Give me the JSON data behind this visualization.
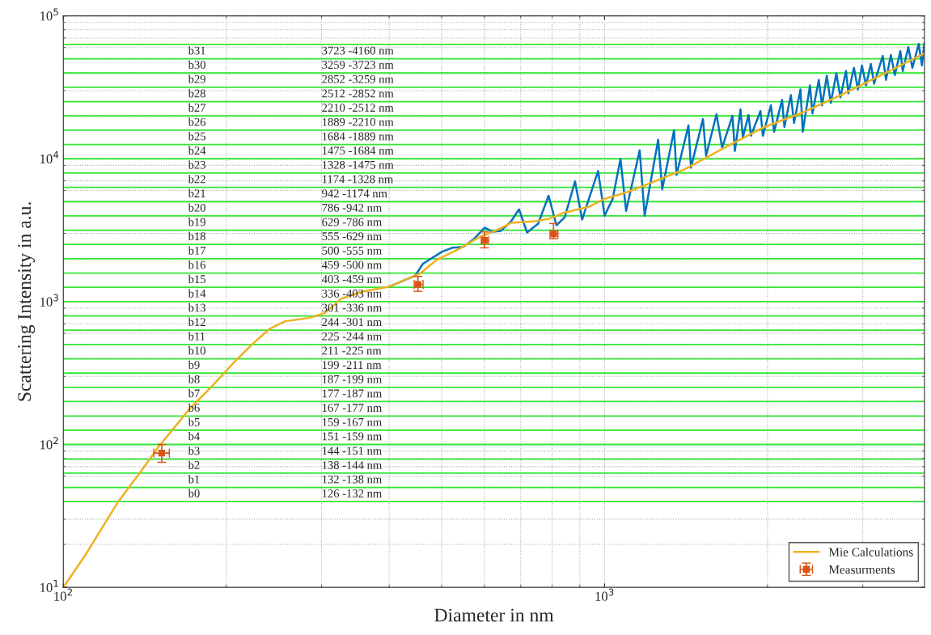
{
  "chart_data": {
    "type": "line",
    "xlabel": "Diameter in nm",
    "ylabel": "Scattering Intensity in a.u.",
    "log": "xy",
    "grid": true,
    "legend": "bottom right",
    "xlim": [
      100,
      3900
    ],
    "ylim": [
      10,
      100000
    ],
    "xticks": [
      {
        "value": 100,
        "label": "10$^{2}$"
      },
      {
        "value": 1000,
        "label": "10$^{3}$"
      }
    ],
    "yticks": [
      {
        "value": 10,
        "label": "10$^{1}$"
      },
      {
        "value": 100,
        "label": "10$^{2}$"
      },
      {
        "value": 1000,
        "label": "10$^{3}$"
      },
      {
        "value": 10000,
        "label": "10$^{4}$"
      },
      {
        "value": 100000,
        "label": "10$^{5}$"
      }
    ],
    "series": [
      {
        "color": "#0072bd",
        "marker": "none",
        "x": [
          399,
          447,
          462,
          501,
          524,
          548,
          574,
          600,
          621,
          643,
          672,
          695,
          719,
          754,
          788,
          815,
          844,
          882,
          909,
          925,
          973,
          1000,
          1035,
          1070,
          1096,
          1161,
          1186,
          1256,
          1278,
          1344,
          1358,
          1429,
          1444,
          1520,
          1540,
          1610,
          1649,
          1723,
          1741,
          1783,
          1801,
          1845,
          1864,
          1941,
          1961,
          2029,
          2057,
          2128,
          2149,
          2209,
          2239,
          2301,
          2324,
          2396,
          2421,
          2488,
          2522,
          2574,
          2618,
          2681,
          2727,
          2793,
          2821,
          2889,
          2938,
          2989,
          3041,
          3104,
          3147,
          3266,
          3311,
          3380,
          3438,
          3520,
          3556,
          3641,
          3704,
          3806,
          3858,
          3898
        ],
        "values": [
          1269,
          1520,
          1844,
          2237,
          2386,
          2417,
          2749,
          3292,
          3087,
          3127,
          3650,
          4428,
          3047,
          3511,
          5512,
          3422,
          3893,
          6950,
          3745,
          4602,
          8216,
          3994,
          5234,
          9970,
          4315,
          11480,
          3994,
          13580,
          6109,
          15850,
          7703,
          17120,
          8652,
          18980,
          10500,
          20500,
          11940,
          19980,
          11340,
          22150,
          14110,
          20240,
          14480,
          21590,
          14480,
          23630,
          15450,
          25860,
          16690,
          27930,
          17800,
          30570,
          15450,
          32610,
          20770,
          35680,
          23630,
          38050,
          24560,
          39560,
          26880,
          41110,
          28660,
          43290,
          30570,
          44990,
          32610,
          46160,
          33460,
          52530,
          35680,
          53200,
          38550,
          56730,
          41110,
          60500,
          43290,
          63700,
          44990,
          64530
        ]
      },
      {
        "name": "Mie Calculations",
        "color": "#edb120",
        "marker": "none",
        "x": [
          100,
          110,
          126,
          139,
          150,
          171,
          189,
          209,
          224,
          240,
          257,
          284,
          304,
          326,
          357,
          399,
          457,
          490,
          537,
          586,
          628,
          672,
          744,
          788,
          844,
          934,
          1000,
          1107,
          1186,
          1405,
          1666,
          1974,
          2341,
          2774,
          3289,
          3898
        ],
        "values": [
          10,
          17,
          39.2,
          64.7,
          96.5,
          177,
          260,
          393,
          508,
          641,
          729,
          768,
          830,
          1046,
          1175,
          1269,
          1580,
          1966,
          2325,
          2820,
          3127,
          3556,
          3650,
          3793,
          4206,
          4602,
          5234,
          5878,
          6516,
          8430,
          11940,
          16690,
          21310,
          28660,
          39560,
          54600
        ]
      },
      {
        "type": "scatter",
        "name": "Measurments",
        "color": "#d95319",
        "marker": "square",
        "x": [
          152,
          452,
          600,
          805
        ],
        "values": [
          87.1,
          1319,
          2679,
          2982
        ],
        "errors": [
          [
            75,
            100
          ],
          [
            1180,
            1501
          ],
          [
            2380,
            3074
          ],
          [
            2759,
            3525
          ]
        ],
        "xerrors": [
          [
            147,
            157
          ],
          [
            445,
            462
          ],
          [
            592,
            611
          ],
          [
            793,
            820
          ]
        ]
      }
    ],
    "ref_lines": [
      {
        "axis": "y",
        "value": 40,
        "color": "#33e633"
      },
      {
        "axis": "y",
        "value": 50,
        "color": "#33e633"
      },
      {
        "axis": "y",
        "value": 63,
        "color": "#33e633"
      },
      {
        "axis": "y",
        "value": 79,
        "color": "#33e633"
      },
      {
        "axis": "y",
        "value": 100,
        "color": "#33e633"
      },
      {
        "axis": "y",
        "value": 126,
        "color": "#33e633"
      },
      {
        "axis": "y",
        "value": 158,
        "color": "#33e633"
      },
      {
        "axis": "y",
        "value": 200,
        "color": "#33e633"
      },
      {
        "axis": "y",
        "value": 251,
        "color": "#33e633"
      },
      {
        "axis": "y",
        "value": 316,
        "color": "#33e633"
      },
      {
        "axis": "y",
        "value": 398,
        "color": "#33e633"
      },
      {
        "axis": "y",
        "value": 501,
        "color": "#33e633"
      },
      {
        "axis": "y",
        "value": 631,
        "color": "#33e633"
      },
      {
        "axis": "y",
        "value": 794,
        "color": "#33e633"
      },
      {
        "axis": "y",
        "value": 1000,
        "color": "#33e633"
      },
      {
        "axis": "y",
        "value": 1259,
        "color": "#33e633"
      },
      {
        "axis": "y",
        "value": 1585,
        "color": "#33e633"
      },
      {
        "axis": "y",
        "value": 1995,
        "color": "#33e633"
      },
      {
        "axis": "y",
        "value": 2512,
        "color": "#33e633"
      },
      {
        "axis": "y",
        "value": 3162,
        "color": "#33e633"
      },
      {
        "axis": "y",
        "value": 3981,
        "color": "#33e633"
      },
      {
        "axis": "y",
        "value": 5012,
        "color": "#33e633"
      },
      {
        "axis": "y",
        "value": 6310,
        "color": "#33e633"
      },
      {
        "axis": "y",
        "value": 7943,
        "color": "#33e633"
      },
      {
        "axis": "y",
        "value": 10000,
        "color": "#33e633"
      },
      {
        "axis": "y",
        "value": 12589,
        "color": "#33e633"
      },
      {
        "axis": "y",
        "value": 15849,
        "color": "#33e633"
      },
      {
        "axis": "y",
        "value": 19953,
        "color": "#33e633"
      },
      {
        "axis": "y",
        "value": 25119,
        "color": "#33e633"
      },
      {
        "axis": "y",
        "value": 31623,
        "color": "#33e633"
      },
      {
        "axis": "y",
        "value": 39811,
        "color": "#33e633"
      },
      {
        "axis": "y",
        "value": 50119,
        "color": "#33e633"
      },
      {
        "axis": "y",
        "value": 63096,
        "color": "#33e633"
      }
    ],
    "annotations": [
      "b31",
      "3723 -4160 nm",
      "b30",
      "3259 -3723 nm",
      "b29",
      "2852 -3259 nm",
      "b28",
      "2512 -2852 nm",
      "b27",
      "2210 -2512 nm",
      "b26",
      "1889 -2210 nm",
      "b25",
      "1684 -1889 nm",
      "b24",
      "1475 -1684 nm",
      "b23",
      "1328 -1475 nm",
      "b22",
      "1174 -1328 nm",
      "b21",
      "942 -1174 nm",
      "b20",
      "786 -942 nm",
      "b19",
      "629 -786 nm",
      "b18",
      "555 -629 nm",
      "b17",
      "500 -555 nm",
      "b16",
      "459 -500 nm",
      "b15",
      "403 -459 nm",
      "b14",
      "336 -403 nm",
      "b13",
      "301 -336 nm",
      "b12",
      "244 -301 nm",
      "b11",
      "225 -244 nm",
      "b10",
      "211 -225 nm",
      "b9",
      "199 -211 nm",
      "b8",
      "187 -199 nm",
      "b7",
      "177 -187 nm",
      "b6",
      "167 -177 nm",
      "b5",
      "159 -167 nm",
      "b4",
      "151 -159 nm",
      "b3",
      "144 -151 nm",
      "b2",
      "138 -144 nm",
      "b1",
      "132 -138 nm",
      "b0",
      "126 -132 nm"
    ]
  }
}
